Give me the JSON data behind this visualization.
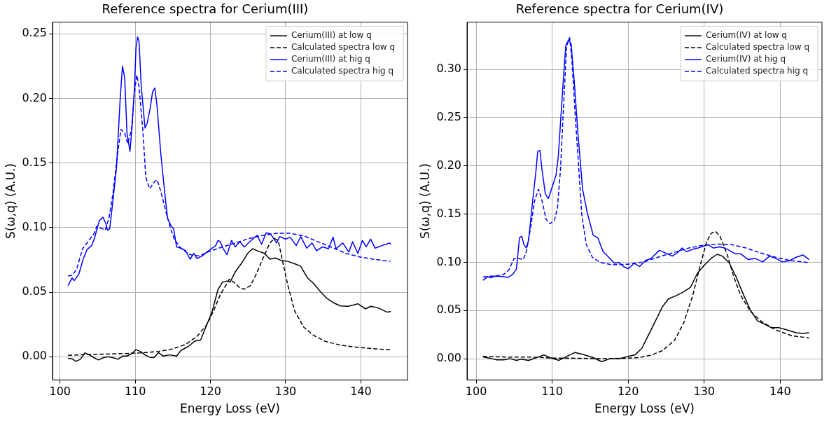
{
  "chart_data": [
    {
      "type": "line",
      "title": "Reference spectra for Cerium(III)",
      "xlabel": "Energy Loss (eV)",
      "ylabel": "S(ω,q) (A.U.)",
      "xlim": [
        99,
        146.2
      ],
      "ylim": [
        -0.018,
        0.259
      ],
      "xticks": [
        100,
        110,
        120,
        130,
        140
      ],
      "yticks": [
        {
          "value": 0,
          "label": "0.00"
        },
        {
          "value": 0.05,
          "label": "0.05"
        },
        {
          "value": 0.1,
          "label": "0.10"
        },
        {
          "value": 0.15,
          "label": "0.15"
        },
        {
          "value": 0.2,
          "label": "0.20"
        },
        {
          "value": 0.25,
          "label": "0.25"
        }
      ],
      "grid": true,
      "legend": "top right",
      "marker": "none",
      "series": [
        {
          "name": "Cerium(III) at low q",
          "color": "#000000",
          "line_style": "solid",
          "x": [
            101.06,
            101.6,
            102.1,
            102.7,
            103.3,
            103.9,
            104.5,
            105.1,
            105.8,
            106.4,
            107.0,
            107.7,
            108.3,
            108.9,
            109.5,
            110.1,
            110.7,
            111.3,
            111.9,
            112.5,
            113.1,
            113.7,
            114.6,
            115.5,
            116.1,
            117.0,
            117.9,
            118.7,
            119.5,
            120.2,
            121.0,
            121.6,
            122.2,
            122.6,
            123.3,
            124.2,
            124.95,
            125.6,
            126.3,
            127.2,
            127.9,
            128.6,
            129.4,
            130.3,
            131.2,
            132.0,
            132.9,
            133.7,
            134.6,
            135.5,
            136.4,
            137.3,
            138.3,
            138.9,
            139.6,
            140.6,
            141.3,
            142.2,
            143.5,
            144.0
          ],
          "values": [
            -0.0013,
            -0.0016,
            -0.0036,
            -0.002,
            0.003,
            0.0014,
            -0.0007,
            -0.0025,
            -0.0007,
            0,
            -0.0007,
            -0.002,
            0.0005,
            0.0005,
            0.0023,
            0.0055,
            0.004,
            0.0014,
            -0.0004,
            -0.0007,
            0.0032,
            0.0005,
            0.0014,
            0.0005,
            0.005,
            0.0077,
            0.012,
            0.013,
            0.0246,
            0.0345,
            0.052,
            0.0577,
            0.0586,
            0.0577,
            0.0657,
            0.0729,
            0.08,
            0.0836,
            0.0818,
            0.08,
            0.0755,
            0.0764,
            0.0746,
            0.0738,
            0.072,
            0.07,
            0.061,
            0.0568,
            0.0505,
            0.045,
            0.0416,
            0.0393,
            0.039,
            0.0398,
            0.041,
            0.037,
            0.039,
            0.038,
            0.0345,
            0.035
          ]
        },
        {
          "name": "Calculated spectra low q",
          "color": "#000000",
          "line_style": "dashed",
          "x": [
            101.06,
            104.6,
            107.7,
            110.7,
            113.1,
            114.9,
            116.7,
            118.2,
            119.5,
            120.4,
            121.3,
            122.2,
            122.5,
            123.3,
            123.9,
            124.5,
            125.3,
            126.1,
            127.0,
            127.9,
            128.5,
            129.0,
            129.5,
            130.3,
            131.2,
            132.4,
            133.7,
            135.2,
            137.3,
            139.8,
            142.2,
            144.0
          ],
          "values": [
            0.0011,
            0.0018,
            0.0023,
            0.0029,
            0.0041,
            0.0059,
            0.0095,
            0.0157,
            0.0246,
            0.0354,
            0.0479,
            0.0568,
            0.06,
            0.0568,
            0.0532,
            0.0523,
            0.055,
            0.064,
            0.0764,
            0.088,
            0.0916,
            0.09,
            0.0764,
            0.055,
            0.0354,
            0.0229,
            0.0166,
            0.012,
            0.0089,
            0.0071,
            0.0059,
            0.0054
          ]
        },
        {
          "name": "Cerium(III) at hig q",
          "color": "#0000ff",
          "line_style": "solid",
          "x": [
            101.06,
            101.6,
            101.9,
            102.5,
            103.1,
            103.6,
            104.2,
            104.6,
            105.2,
            105.7,
            106.1,
            106.3,
            106.6,
            107.0,
            107.5,
            108.0,
            108.3,
            108.6,
            108.9,
            109.3,
            109.6,
            109.9,
            110.1,
            110.3,
            110.5,
            110.8,
            111.3,
            111.6,
            112.0,
            112.3,
            112.6,
            112.9,
            113.4,
            113.9,
            114.3,
            114.8,
            115.1,
            115.5,
            116.1,
            116.7,
            117.3,
            117.8,
            118.2,
            118.9,
            119.5,
            120.1,
            120.7,
            121.0,
            121.3,
            121.7,
            122.2,
            122.8,
            123.3,
            123.9,
            124.5,
            125.4,
            126.2,
            126.8,
            127.4,
            128.0,
            128.8,
            129.2,
            130.0,
            130.6,
            131.4,
            132.0,
            132.8,
            133.5,
            134.1,
            134.9,
            135.7,
            136.3,
            136.7,
            137.6,
            138.4,
            138.9,
            139.6,
            140.2,
            140.7,
            141.3,
            141.9,
            142.8,
            143.8,
            144.0
          ],
          "values": [
            0.055,
            0.061,
            0.059,
            0.064,
            0.076,
            0.083,
            0.086,
            0.092,
            0.105,
            0.108,
            0.103,
            0.098,
            0.099,
            0.119,
            0.146,
            0.2,
            0.225,
            0.216,
            0.173,
            0.159,
            0.18,
            0.209,
            0.239,
            0.2475,
            0.244,
            0.209,
            0.177,
            0.181,
            0.193,
            0.205,
            0.208,
            0.194,
            0.157,
            0.128,
            0.107,
            0.101,
            0.099,
            0.085,
            0.084,
            0.082,
            0.0755,
            0.08,
            0.076,
            0.078,
            0.081,
            0.0836,
            0.086,
            0.09,
            0.089,
            0.0836,
            0.079,
            0.09,
            0.085,
            0.089,
            0.085,
            0.09,
            0.094,
            0.087,
            0.096,
            0.095,
            0.088,
            0.093,
            0.091,
            0.0925,
            0.086,
            0.093,
            0.084,
            0.088,
            0.082,
            0.085,
            0.0836,
            0.0925,
            0.0836,
            0.088,
            0.081,
            0.089,
            0.08,
            0.09,
            0.085,
            0.091,
            0.084,
            0.086,
            0.088,
            0.087
          ]
        },
        {
          "name": "Calculated spectra hig q",
          "color": "#0000ff",
          "line_style": "dashed",
          "x": [
            101.06,
            101.6,
            102.2,
            103.0,
            103.7,
            104.5,
            104.9,
            105.4,
            106.0,
            106.5,
            107.0,
            107.7,
            108.1,
            108.6,
            109.0,
            109.5,
            109.9,
            110.2,
            110.5,
            111.0,
            111.4,
            111.9,
            112.5,
            112.9,
            113.4,
            114.0,
            114.6,
            115.2,
            116.1,
            117.3,
            118.5,
            119.8,
            121.6,
            123.3,
            125.2,
            127.0,
            128.8,
            130.6,
            132.5,
            134.3,
            136.2,
            138.0,
            139.8,
            141.6,
            143.9
          ],
          "values": [
            0.0625,
            0.063,
            0.0675,
            0.0836,
            0.089,
            0.095,
            0.101,
            0.0996,
            0.098,
            0.107,
            0.125,
            0.159,
            0.176,
            0.173,
            0.165,
            0.176,
            0.205,
            0.218,
            0.209,
            0.176,
            0.139,
            0.13,
            0.135,
            0.137,
            0.128,
            0.114,
            0.101,
            0.091,
            0.0836,
            0.079,
            0.078,
            0.0814,
            0.085,
            0.088,
            0.0916,
            0.094,
            0.0955,
            0.0955,
            0.0934,
            0.089,
            0.0845,
            0.08,
            0.0773,
            0.0755,
            0.0738
          ]
        }
      ]
    },
    {
      "type": "line",
      "title": "Reference spectra for Cerium(IV)",
      "xlabel": "Energy Loss (eV)",
      "ylabel": "S(ω,q) (A.U.)",
      "xlim": [
        98.8,
        145.5
      ],
      "ylim": [
        -0.022,
        0.349
      ],
      "xticks": [
        100,
        110,
        120,
        130,
        140
      ],
      "yticks": [
        {
          "value": 0,
          "label": "0.00"
        },
        {
          "value": 0.05,
          "label": "0.05"
        },
        {
          "value": 0.1,
          "label": "0.10"
        },
        {
          "value": 0.15,
          "label": "0.15"
        },
        {
          "value": 0.2,
          "label": "0.20"
        },
        {
          "value": 0.25,
          "label": "0.25"
        },
        {
          "value": 0.3,
          "label": "0.30"
        }
      ],
      "grid": true,
      "legend": "top right",
      "marker": "none",
      "series": [
        {
          "name": "Cerium(IV) at low q",
          "color": "#000000",
          "line_style": "solid",
          "x": [
            100.9,
            102.1,
            102.7,
            103.6,
            104.5,
            105.3,
            105.9,
            106.9,
            107.8,
            108.9,
            109.7,
            110.9,
            111.9,
            113.0,
            113.9,
            115.4,
            116.5,
            117.6,
            118.8,
            120.0,
            120.9,
            121.8,
            122.7,
            123.6,
            124.5,
            125.3,
            126.4,
            127.3,
            128.2,
            129.1,
            130.0,
            130.9,
            131.7,
            132.4,
            133.3,
            134.2,
            135.2,
            136.1,
            137.0,
            137.9,
            138.8,
            139.8,
            140.9,
            142.1,
            143.0,
            143.8
          ],
          "values": [
            0.0019,
            0,
            -0.0012,
            -0.0012,
            0,
            -0.0017,
            -0.0005,
            -0.0017,
            0.0007,
            0.004,
            0.0012,
            -0.0017,
            0.0024,
            0.0065,
            0.0048,
            0.0012,
            -0.003,
            0,
            0,
            0.0024,
            0.004,
            0.0108,
            0.0251,
            0.0394,
            0.0538,
            0.062,
            0.0657,
            0.0693,
            0.074,
            0.0885,
            0.0968,
            0.104,
            0.1083,
            0.1064,
            0.0992,
            0.0849,
            0.0657,
            0.0502,
            0.0394,
            0.0359,
            0.0323,
            0.0323,
            0.0299,
            0.027,
            0.0263,
            0.027
          ]
        },
        {
          "name": "Calculated spectra low q",
          "color": "#000000",
          "line_style": "dashed",
          "x": [
            100.9,
            104.2,
            107.2,
            110.3,
            113.3,
            116.4,
            119.4,
            121.4,
            123.0,
            124.5,
            126.1,
            127.3,
            128.5,
            129.4,
            130.3,
            130.9,
            131.5,
            132.1,
            133.0,
            133.9,
            134.8,
            136.1,
            137.6,
            139.4,
            141.5,
            143.8
          ],
          "values": [
            0.0024,
            0.0017,
            0.0017,
            0.0007,
            0.0005,
            0,
            0.0005,
            0.0012,
            0.0036,
            0.0084,
            0.019,
            0.037,
            0.0657,
            0.0944,
            0.1207,
            0.13,
            0.132,
            0.1267,
            0.1088,
            0.0849,
            0.0657,
            0.049,
            0.0382,
            0.0299,
            0.0239,
            0.0215
          ]
        },
        {
          "name": "Cerium(IV) at hig q",
          "color": "#0000ff",
          "line_style": "solid",
          "x": [
            100.9,
            101.5,
            101.9,
            102.5,
            103.4,
            104.2,
            104.8,
            105.3,
            105.7,
            106.0,
            106.3,
            106.6,
            106.9,
            107.4,
            107.9,
            108.1,
            108.4,
            108.6,
            109.1,
            109.5,
            110.0,
            110.5,
            110.8,
            111.1,
            111.5,
            111.8,
            112.2,
            112.5,
            112.9,
            113.4,
            114.0,
            114.6,
            115.4,
            116.0,
            116.7,
            117.6,
            118.2,
            118.8,
            119.4,
            120.0,
            120.8,
            121.5,
            122.3,
            123.0,
            124.1,
            124.8,
            125.8,
            126.5,
            127.1,
            127.7,
            128.5,
            129.2,
            130.0,
            130.5,
            131.2,
            132.0,
            132.7,
            133.3,
            134.1,
            134.8,
            135.8,
            136.7,
            137.7,
            138.6,
            139.4,
            140.3,
            141.2,
            142.1,
            143.0,
            143.8
          ],
          "values": [
            0.0813,
            0.085,
            0.084,
            0.0856,
            0.0853,
            0.0844,
            0.0873,
            0.093,
            0.1255,
            0.127,
            0.118,
            0.115,
            0.123,
            0.161,
            0.197,
            0.215,
            0.216,
            0.2,
            0.171,
            0.166,
            0.178,
            0.19,
            0.209,
            0.245,
            0.293,
            0.325,
            0.331,
            0.326,
            0.288,
            0.233,
            0.176,
            0.152,
            0.128,
            0.1255,
            0.111,
            0.104,
            0.099,
            0.0997,
            0.0956,
            0.0932,
            0.099,
            0.0956,
            0.102,
            0.104,
            0.1124,
            0.11,
            0.1064,
            0.11,
            0.1148,
            0.111,
            0.1135,
            0.1148,
            0.117,
            0.1183,
            0.1148,
            0.116,
            0.1148,
            0.1124,
            0.1088,
            0.1088,
            0.1028,
            0.104,
            0.1004,
            0.1064,
            0.104,
            0.1004,
            0.1016,
            0.1052,
            0.1076,
            0.1028
          ]
        },
        {
          "name": "Calculated spectra hig q",
          "color": "#0000ff",
          "line_style": "dashed",
          "x": [
            100.9,
            102.7,
            103.6,
            104.3,
            105.0,
            105.6,
            106.2,
            106.6,
            107.1,
            107.7,
            108.2,
            108.6,
            109.2,
            109.7,
            110.3,
            110.7,
            111.1,
            111.5,
            111.9,
            112.3,
            112.6,
            113.0,
            113.5,
            113.9,
            114.5,
            115.3,
            116.4,
            117.9,
            120.0,
            122.1,
            124.2,
            126.1,
            128.0,
            129.7,
            131.8,
            133.6,
            135.5,
            137.3,
            139.4,
            141.5,
            143.8
          ],
          "values": [
            0.0849,
            0.086,
            0.0873,
            0.092,
            0.104,
            0.104,
            0.1028,
            0.111,
            0.1327,
            0.164,
            0.1757,
            0.166,
            0.1446,
            0.14,
            0.1434,
            0.1566,
            0.197,
            0.262,
            0.324,
            0.333,
            0.3096,
            0.257,
            0.197,
            0.149,
            0.1183,
            0.105,
            0.0997,
            0.0973,
            0.098,
            0.1004,
            0.106,
            0.1104,
            0.1148,
            0.1176,
            0.1188,
            0.1183,
            0.1148,
            0.11,
            0.1052,
            0.1016,
            0.0997
          ]
        }
      ]
    }
  ]
}
